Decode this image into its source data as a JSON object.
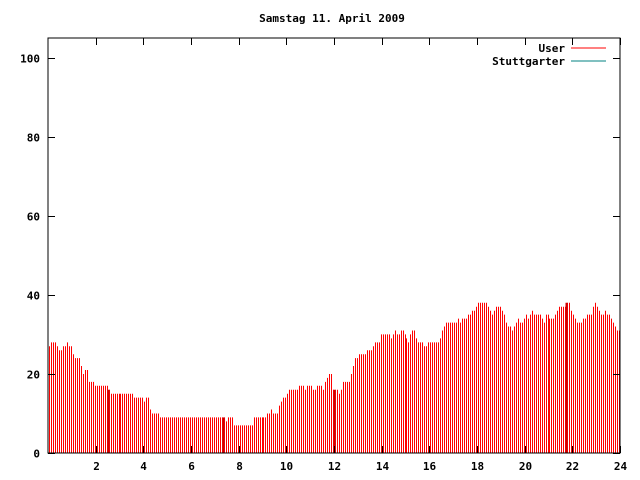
{
  "chart_data": {
    "type": "bar",
    "title": "Samstag 11. April 2009",
    "xlabel": "",
    "ylabel": "",
    "xlim": [
      0,
      24
    ],
    "ylim": [
      0,
      105
    ],
    "x_ticks": [
      2,
      4,
      6,
      8,
      10,
      12,
      14,
      16,
      18,
      20,
      22,
      24
    ],
    "y_ticks": [
      0,
      20,
      40,
      60,
      80,
      100
    ],
    "x_tick_labels": [
      "2",
      "4",
      "6",
      "8",
      "10",
      "12",
      "14",
      "16",
      "18",
      "20",
      "22",
      "24"
    ],
    "y_tick_labels": [
      "0",
      "20",
      "40",
      "60",
      "80",
      "100"
    ],
    "grid": false,
    "legend_position": "top-right",
    "series": [
      {
        "name": "User",
        "color": "#ff0000",
        "step_minutes": 5,
        "values": [
          27,
          28,
          28,
          28,
          27,
          26,
          26,
          27,
          27,
          28,
          27,
          27,
          25,
          24,
          24,
          24,
          22,
          20,
          21,
          21,
          18,
          18,
          18,
          17,
          17,
          17,
          17,
          17,
          17,
          17,
          16,
          15,
          15,
          15,
          15,
          15,
          15,
          15,
          15,
          15,
          15,
          15,
          15,
          14,
          14,
          14,
          14,
          14,
          13,
          14,
          14,
          11,
          10,
          10,
          10,
          10,
          9,
          9,
          9,
          9,
          9,
          9,
          9,
          9,
          9,
          9,
          9,
          9,
          9,
          9,
          9,
          9,
          9,
          9,
          9,
          9,
          9,
          9,
          9,
          9,
          9,
          9,
          9,
          9,
          9,
          9,
          9,
          9,
          9,
          8,
          9,
          9,
          9,
          7,
          7,
          7,
          7,
          7,
          7,
          7,
          7,
          7,
          7,
          9,
          9,
          9,
          9,
          9,
          9,
          9,
          10,
          10,
          11,
          10,
          10,
          10,
          12,
          13,
          14,
          14,
          15,
          16,
          16,
          16,
          16,
          16,
          17,
          17,
          17,
          16,
          17,
          17,
          17,
          16,
          16,
          17,
          17,
          17,
          16,
          18,
          19,
          20,
          20,
          16,
          16,
          16,
          15,
          16,
          18,
          18,
          18,
          18,
          20,
          22,
          24,
          24,
          25,
          25,
          25,
          25,
          26,
          26,
          26,
          27,
          28,
          28,
          28,
          30,
          30,
          30,
          30,
          30,
          29,
          30,
          31,
          30,
          30,
          31,
          31,
          30,
          29,
          28,
          30,
          31,
          31,
          29,
          28,
          28,
          28,
          27,
          27,
          28,
          28,
          28,
          28,
          28,
          28,
          29,
          31,
          32,
          33,
          33,
          33,
          33,
          33,
          33,
          34,
          33,
          34,
          34,
          34,
          35,
          35,
          36,
          36,
          37,
          38,
          38,
          38,
          38,
          38,
          37,
          36,
          35,
          36,
          37,
          37,
          37,
          36,
          35,
          33,
          32,
          32,
          31,
          32,
          33,
          34,
          33,
          33,
          34,
          35,
          34,
          35,
          36,
          35,
          35,
          35,
          35,
          34,
          33,
          35,
          35,
          34,
          34,
          34,
          35,
          36,
          37,
          37,
          37,
          37,
          38,
          38,
          36,
          35,
          34,
          33,
          33,
          33,
          34,
          34,
          35,
          35,
          35,
          37,
          38,
          37,
          36,
          35,
          35,
          36,
          35,
          35,
          34,
          33,
          32,
          31,
          31
        ]
      },
      {
        "name": "Stuttgarter",
        "color": "#008080",
        "step_minutes": 5,
        "values": []
      }
    ],
    "marker_lines_color": "#cc0000",
    "marker_lines_x": [
      2.5,
      7.33,
      12.0,
      21.75
    ]
  }
}
